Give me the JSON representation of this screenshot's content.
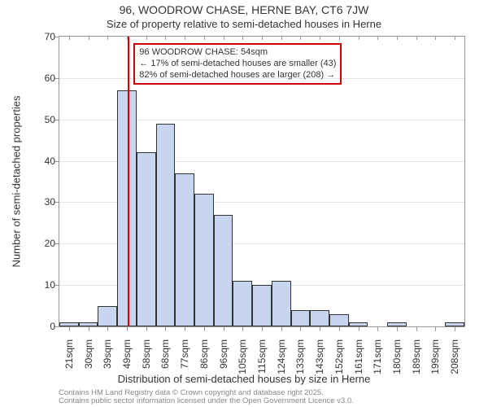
{
  "title_line1": "96, WOODROW CHASE, HERNE BAY, CT6 7JW",
  "title_line2": "Size of property relative to semi-detached houses in Herne",
  "yaxis_title": "Number of semi-detached properties",
  "xaxis_title": "Distribution of semi-detached houses by size in Herne",
  "chart": {
    "type": "histogram",
    "background_color": "#ffffff",
    "plot_border_color": "#999999",
    "grid_color": "#cccccc",
    "bar_fill_color": "#c8d5ef",
    "bar_border_color": "#333333",
    "highlight_line_color": "#cc0000",
    "ylim": [
      0,
      70
    ],
    "yticks": [
      0,
      10,
      20,
      30,
      40,
      50,
      60,
      70
    ],
    "x_categories": [
      "21sqm",
      "30sqm",
      "39sqm",
      "49sqm",
      "58sqm",
      "68sqm",
      "77sqm",
      "86sqm",
      "96sqm",
      "105sqm",
      "115sqm",
      "124sqm",
      "133sqm",
      "143sqm",
      "152sqm",
      "161sqm",
      "171sqm",
      "180sqm",
      "189sqm",
      "199sqm",
      "208sqm"
    ],
    "bar_values": [
      1,
      1,
      5,
      57,
      42,
      49,
      37,
      32,
      27,
      11,
      10,
      11,
      4,
      4,
      3,
      1,
      0,
      1,
      0,
      0,
      1
    ],
    "highlight_x_position": 3.55,
    "callout": {
      "lines": [
        "96 WOODROW CHASE: 54sqm",
        "← 17% of semi-detached houses are smaller (43)",
        "82% of semi-detached houses are larger (208) →"
      ],
      "border_color": "#cc0000",
      "top_offset": 8,
      "left_bar_index": 3.85
    },
    "label_fontsize": 12,
    "title_fontsize": 14
  },
  "credits_line1": "Contains HM Land Registry data © Crown copyright and database right 2025.",
  "credits_line2": "Contains public sector information licensed under the Open Government Licence v3.0."
}
